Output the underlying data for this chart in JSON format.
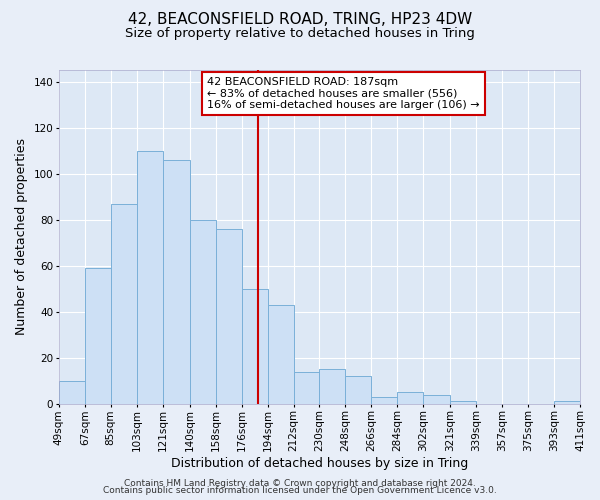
{
  "title": "42, BEACONSFIELD ROAD, TRING, HP23 4DW",
  "subtitle": "Size of property relative to detached houses in Tring",
  "xlabel": "Distribution of detached houses by size in Tring",
  "ylabel": "Number of detached properties",
  "bar_edges": [
    49,
    67,
    85,
    103,
    121,
    140,
    158,
    176,
    194,
    212,
    230,
    248,
    266,
    284,
    302,
    321,
    339,
    357,
    375,
    393,
    411
  ],
  "bar_heights": [
    10,
    59,
    87,
    110,
    106,
    80,
    76,
    50,
    43,
    14,
    15,
    12,
    3,
    5,
    4,
    1,
    0,
    0,
    0,
    1
  ],
  "bar_color": "#cde0f5",
  "bar_edge_color": "#7ab0d8",
  "vline_x": 187,
  "vline_color": "#cc0000",
  "annotation_box_text": "42 BEACONSFIELD ROAD: 187sqm\n← 83% of detached houses are smaller (556)\n16% of semi-detached houses are larger (106) →",
  "annotation_box_color": "#cc0000",
  "bg_color": "#e8eef8",
  "plot_bg_color": "#dde8f5",
  "grid_color": "#ffffff",
  "ylim": [
    0,
    145
  ],
  "xlim": [
    49,
    411
  ],
  "tick_labels": [
    "49sqm",
    "67sqm",
    "85sqm",
    "103sqm",
    "121sqm",
    "140sqm",
    "158sqm",
    "176sqm",
    "194sqm",
    "212sqm",
    "230sqm",
    "248sqm",
    "266sqm",
    "284sqm",
    "302sqm",
    "321sqm",
    "339sqm",
    "357sqm",
    "375sqm",
    "393sqm",
    "411sqm"
  ],
  "footer_line1": "Contains HM Land Registry data © Crown copyright and database right 2024.",
  "footer_line2": "Contains public sector information licensed under the Open Government Licence v3.0.",
  "title_fontsize": 11,
  "subtitle_fontsize": 9.5,
  "xlabel_fontsize": 9,
  "ylabel_fontsize": 9,
  "tick_fontsize": 7.5,
  "ann_fontsize": 8,
  "footer_fontsize": 6.5
}
